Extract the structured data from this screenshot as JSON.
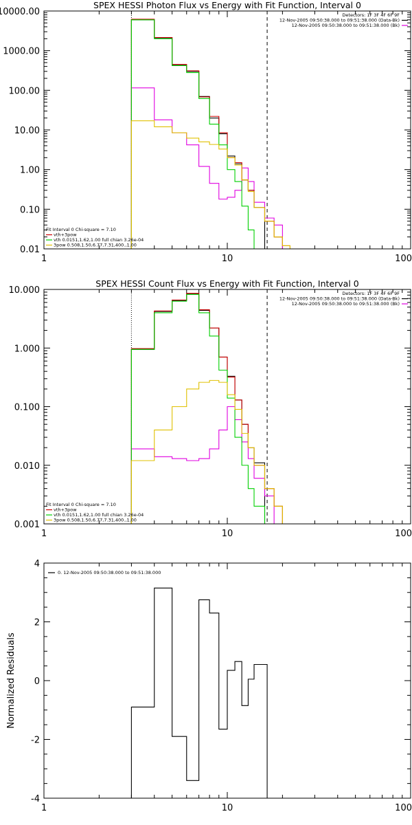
{
  "chart_data": [
    {
      "type": "line",
      "title": "SPEX HESSI Photon Flux vs Energy with Fit Function, Interval 0",
      "xscale": "log",
      "yscale": "log",
      "xlim": [
        1,
        100
      ],
      "ylim": [
        0.01,
        10000
      ],
      "xticks": [
        "1",
        "10",
        "100"
      ],
      "yticks": [
        "0.01",
        "0.10",
        "1.00",
        "10.00",
        "100.00",
        "1000.00",
        "10000.00"
      ],
      "legend_topright": [
        "Detectors: 1F 3F 4F 6F 9F",
        "12-Nov-2005 09:50:38.000 to 09:51:38.000 (Data-Bk)",
        "12-Nov-2005 09:50:38.000 to 09:51:38.000 (Bk)"
      ],
      "legend_bottomleft": [
        "Fit Interval 0   Chi-square = 7.10",
        "vth+3pow",
        "vth 0.0151,1.62,1.00  full chian 3.26e-04",
        "3pow 0.508,1.50,6.77,7.31,400.,1.00"
      ],
      "vlines": [
        {
          "x": 3.0,
          "style": "dotted"
        },
        {
          "x": 16.5,
          "style": "dashed"
        }
      ],
      "edges": [
        3,
        4,
        5,
        6,
        7,
        8,
        9,
        10,
        11,
        12,
        13,
        14,
        16,
        18,
        20,
        22
      ],
      "series": [
        {
          "name": "12-Nov-2005 09:50:38.000 to 09:51:38.000 (Data-Bk)",
          "color": "#000000",
          "values": [
            6000,
            2100,
            430,
            300,
            70,
            20,
            8,
            2.2,
            1.4,
            0.55,
            0.3,
            0.11
          ]
        },
        {
          "name": "12-Nov-2005 09:50:38.000 to 09:51:38.000 (Bk)",
          "color": "#e000e0",
          "values": [
            115,
            18,
            8.5,
            4.2,
            1.2,
            0.45,
            0.18,
            0.2,
            0.3,
            1.1,
            0.5,
            0.15,
            0.06,
            0.04
          ]
        },
        {
          "name": "vth+3pow",
          "color": "#cc0000",
          "values": [
            6200,
            2150,
            450,
            310,
            68,
            22,
            8.5,
            2.0,
            1.5,
            0.55,
            0.3,
            0.11,
            0.05,
            0.02,
            0.012
          ]
        },
        {
          "name": "vth 0.0151,1.62,1.00  full chian 3.26e-04",
          "color": "#00d000",
          "values": [
            6000,
            2000,
            420,
            280,
            62,
            14,
            4.2,
            1.0,
            0.5,
            0.12,
            0.03,
            0.01
          ]
        },
        {
          "name": "3pow 0.508,1.50,6.77,7.31,400.,1.00",
          "color": "#e0c000",
          "values": [
            17,
            12,
            8.5,
            6.2,
            5.0,
            4.3,
            3.3,
            2.0,
            1.3,
            0.55,
            0.28,
            0.11,
            0.05,
            0.02,
            0.012
          ]
        }
      ]
    },
    {
      "type": "line",
      "title": "SPEX HESSI Count Flux vs Energy with Fit Function, Interval 0",
      "xscale": "log",
      "yscale": "log",
      "xlim": [
        1,
        100
      ],
      "ylim": [
        0.001,
        10
      ],
      "xticks": [
        "1",
        "10",
        "100"
      ],
      "yticks": [
        "0.001",
        "0.010",
        "0.100",
        "1.000",
        "10.000"
      ],
      "legend_topright": [
        "Detectors: 1F 3F 4F 6F 9F",
        "12-Nov-2005 09:50:38.000 to 09:51:38.000 (Data-Bk)",
        "12-Nov-2005 09:50:38.000 to 09:51:38.000 (Bk)"
      ],
      "legend_bottomleft": [
        "Fit Interval 0   Chi-square = 7.10",
        "vth+3pow",
        "vth 0.0151,1.62,1.00  full chian 3.26e-04",
        "3pow 0.508,1.50,6.77,7.31,400.,1.00"
      ],
      "vlines": [
        {
          "x": 3.0,
          "style": "dotted"
        },
        {
          "x": 16.5,
          "style": "dashed"
        }
      ],
      "edges": [
        3,
        4,
        5,
        6,
        7,
        8,
        9,
        10,
        11,
        12,
        13,
        14,
        16,
        18,
        20,
        22
      ],
      "series": [
        {
          "name": "12-Nov-2005 09:50:38.000 to 09:51:38.000 (Data-Bk)",
          "color": "#000000",
          "values": [
            0.95,
            4.2,
            6.5,
            8.5,
            4.4,
            2.2,
            0.7,
            0.33,
            0.13,
            0.05,
            0.02,
            0.011
          ]
        },
        {
          "name": "12-Nov-2005 09:50:38.000 to 09:51:38.000 (Bk)",
          "color": "#e000e0",
          "values": [
            0.019,
            0.014,
            0.013,
            0.012,
            0.013,
            0.019,
            0.04,
            0.1,
            0.06,
            0.025,
            0.013,
            0.006,
            0.003
          ]
        },
        {
          "name": "vth+3pow",
          "color": "#cc0000",
          "values": [
            0.98,
            4.3,
            6.6,
            8.6,
            4.5,
            2.2,
            0.7,
            0.32,
            0.13,
            0.05,
            0.02,
            0.01,
            0.004,
            0.002
          ]
        },
        {
          "name": "vth 0.0151,1.62,1.00  full chian 3.26e-04",
          "color": "#00d000",
          "values": [
            0.95,
            4.0,
            6.3,
            8.2,
            4.0,
            1.6,
            0.42,
            0.14,
            0.03,
            0.01,
            0.004,
            0.002
          ]
        },
        {
          "name": "3pow 0.508,1.50,6.77,7.31,400.,1.00",
          "color": "#e0c000",
          "values": [
            0.012,
            0.04,
            0.1,
            0.2,
            0.26,
            0.28,
            0.26,
            0.16,
            0.09,
            0.035,
            0.02,
            0.01,
            0.004,
            0.002,
            0.001
          ]
        }
      ]
    },
    {
      "type": "line",
      "title": "",
      "xscale": "log",
      "yscale": "linear",
      "xlim": [
        1,
        100
      ],
      "ylim": [
        -4,
        4
      ],
      "xticks": [
        "1",
        "10",
        "100"
      ],
      "yticks": [
        "-4",
        "-2",
        "0",
        "2",
        "4"
      ],
      "ylabel": "Normalized Residuals",
      "legend_topleft": [
        "0. 12-Nov-2005 09:50:38.000 to 09:51:38.000"
      ],
      "edges": [
        3,
        4,
        5,
        6,
        7,
        8,
        9,
        10,
        11,
        12,
        13,
        14,
        15,
        16.5
      ],
      "series": [
        {
          "name": "0. 12-Nov-2005 09:50:38.000 to 09:51:38.000",
          "color": "#000000",
          "values": [
            -0.9,
            3.15,
            -1.9,
            -3.4,
            2.75,
            2.3,
            -1.65,
            0.35,
            0.65,
            -0.85,
            0.05,
            0.55,
            0.55
          ]
        }
      ]
    }
  ]
}
